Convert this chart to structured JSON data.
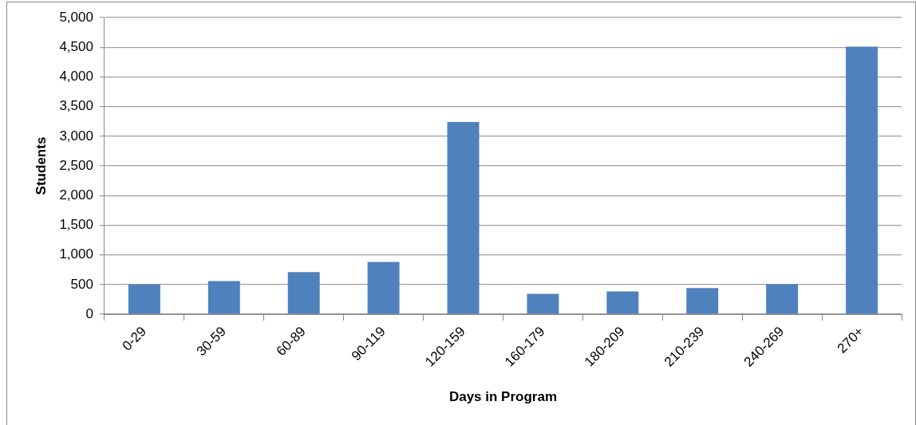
{
  "chart_data": {
    "type": "bar",
    "xlabel": "Days in Program",
    "ylabel": "Students",
    "categories": [
      "0-29",
      "30-59",
      "60-89",
      "90-119",
      "120-159",
      "160-179",
      "180-209",
      "210-239",
      "240-269",
      "270+"
    ],
    "values": [
      500,
      560,
      710,
      880,
      3240,
      345,
      385,
      440,
      505,
      4510
    ],
    "color": "#4f81bd",
    "ylim": [
      0,
      5000
    ],
    "yticks": [
      {
        "value": 0,
        "label": "0"
      },
      {
        "value": 500,
        "label": "500"
      },
      {
        "value": 1000,
        "label": "1,000"
      },
      {
        "value": 1500,
        "label": "1,500"
      },
      {
        "value": 2000,
        "label": "2,000"
      },
      {
        "value": 2500,
        "label": "2,500"
      },
      {
        "value": 3000,
        "label": "3,000"
      },
      {
        "value": 3500,
        "label": "3,500"
      },
      {
        "value": 4000,
        "label": "4,000"
      },
      {
        "value": 4500,
        "label": "4,500"
      },
      {
        "value": 5000,
        "label": "5,000"
      }
    ],
    "grid": "y",
    "legend": false
  }
}
